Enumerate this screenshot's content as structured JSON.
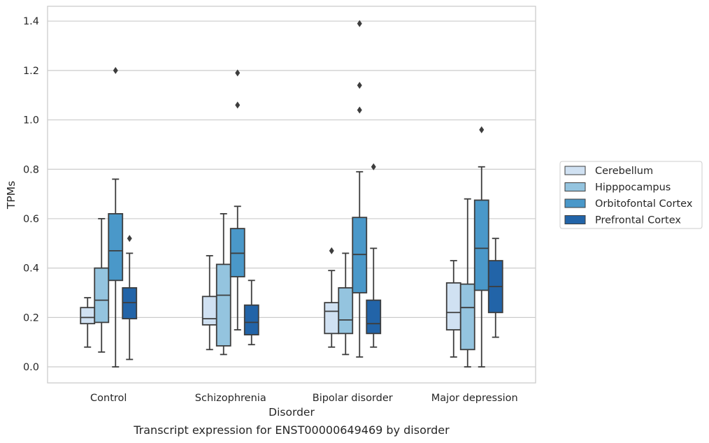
{
  "caption": "Transcript expression for ENST00000649469 by disorder",
  "chart_data": {
    "type": "box",
    "xlabel": "Disorder",
    "ylabel": "TPMs",
    "ylim": [
      -0.065,
      1.46
    ],
    "yticks": [
      "0.0",
      "0.2",
      "0.4",
      "0.6",
      "0.8",
      "1.0",
      "1.2",
      "1.4"
    ],
    "grid": "horizontal",
    "legend_position": "right",
    "categories": [
      "Control",
      "Schizophrenia",
      "Bipolar disorder",
      "Major depression"
    ],
    "series": [
      {
        "name": "Cerebellum",
        "color": "#d0e1f2",
        "boxes": [
          {
            "q1": 0.175,
            "median": 0.2,
            "q3": 0.24,
            "whisker_low": 0.08,
            "whisker_high": 0.28,
            "outliers": []
          },
          {
            "q1": 0.17,
            "median": 0.195,
            "q3": 0.285,
            "whisker_low": 0.07,
            "whisker_high": 0.45,
            "outliers": []
          },
          {
            "q1": 0.135,
            "median": 0.225,
            "q3": 0.26,
            "whisker_low": 0.08,
            "whisker_high": 0.39,
            "outliers": [
              0.47
            ]
          },
          {
            "q1": 0.15,
            "median": 0.22,
            "q3": 0.34,
            "whisker_low": 0.04,
            "whisker_high": 0.43,
            "outliers": []
          }
        ]
      },
      {
        "name": "Hipppocampus",
        "color": "#94c4df",
        "boxes": [
          {
            "q1": 0.18,
            "median": 0.27,
            "q3": 0.4,
            "whisker_low": 0.06,
            "whisker_high": 0.6,
            "outliers": []
          },
          {
            "q1": 0.085,
            "median": 0.29,
            "q3": 0.415,
            "whisker_low": 0.05,
            "whisker_high": 0.62,
            "outliers": []
          },
          {
            "q1": 0.135,
            "median": 0.19,
            "q3": 0.32,
            "whisker_low": 0.05,
            "whisker_high": 0.46,
            "outliers": []
          },
          {
            "q1": 0.07,
            "median": 0.24,
            "q3": 0.335,
            "whisker_low": 0.0,
            "whisker_high": 0.68,
            "outliers": []
          }
        ]
      },
      {
        "name": "Orbitofontal Cortex",
        "color": "#4a98c9",
        "boxes": [
          {
            "q1": 0.35,
            "median": 0.47,
            "q3": 0.62,
            "whisker_low": 0.0,
            "whisker_high": 0.76,
            "outliers": [
              1.2
            ]
          },
          {
            "q1": 0.365,
            "median": 0.46,
            "q3": 0.56,
            "whisker_low": 0.15,
            "whisker_high": 0.65,
            "outliers": [
              1.06,
              1.19
            ]
          },
          {
            "q1": 0.3,
            "median": 0.455,
            "q3": 0.605,
            "whisker_low": 0.04,
            "whisker_high": 0.79,
            "outliers": [
              1.04,
              1.14,
              1.39
            ]
          },
          {
            "q1": 0.31,
            "median": 0.48,
            "q3": 0.675,
            "whisker_low": 0.0,
            "whisker_high": 0.81,
            "outliers": [
              0.96
            ]
          }
        ]
      },
      {
        "name": "Prefrontal Cortex",
        "color": "#2264a8",
        "boxes": [
          {
            "q1": 0.195,
            "median": 0.26,
            "q3": 0.32,
            "whisker_low": 0.03,
            "whisker_high": 0.46,
            "outliers": [
              0.52
            ]
          },
          {
            "q1": 0.13,
            "median": 0.18,
            "q3": 0.25,
            "whisker_low": 0.09,
            "whisker_high": 0.35,
            "outliers": []
          },
          {
            "q1": 0.135,
            "median": 0.175,
            "q3": 0.27,
            "whisker_low": 0.08,
            "whisker_high": 0.48,
            "outliers": [
              0.81
            ]
          },
          {
            "q1": 0.22,
            "median": 0.325,
            "q3": 0.43,
            "whisker_low": 0.12,
            "whisker_high": 0.52,
            "outliers": []
          }
        ]
      }
    ]
  }
}
